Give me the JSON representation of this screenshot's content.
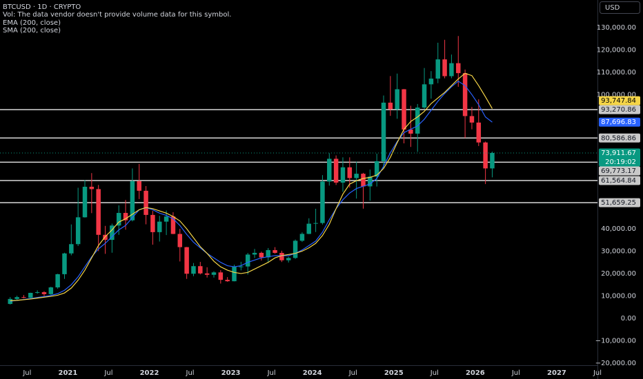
{
  "header": {
    "symbol": "BTCUSD · 1D · CRYPTO",
    "volume_note": "Vol: The data vendor doesn't provide volume data for this symbol."
  },
  "currency_button": "USD",
  "chart_data": {
    "type": "candlestick",
    "x": [
      "2020-04",
      "2020-05",
      "2020-06",
      "2020-07",
      "2020-08",
      "2020-09",
      "2020-10",
      "2020-11",
      "2020-12",
      "2021-01",
      "2021-02",
      "2021-03",
      "2021-04",
      "2021-05",
      "2021-06",
      "2021-07",
      "2021-08",
      "2021-09",
      "2021-10",
      "2021-11",
      "2021-12",
      "2022-01",
      "2022-02",
      "2022-03",
      "2022-04",
      "2022-05",
      "2022-06",
      "2022-07",
      "2022-08",
      "2022-09",
      "2022-10",
      "2022-11",
      "2022-12",
      "2023-01",
      "2023-02",
      "2023-03",
      "2023-04",
      "2023-05",
      "2023-06",
      "2023-07",
      "2023-08",
      "2023-09",
      "2023-10",
      "2023-11",
      "2023-12",
      "2024-01",
      "2024-02",
      "2024-03",
      "2024-04",
      "2024-05",
      "2024-06",
      "2024-07",
      "2024-08",
      "2024-09",
      "2024-10",
      "2024-11",
      "2024-12",
      "2025-01",
      "2025-02",
      "2025-03",
      "2025-04",
      "2025-05",
      "2025-06",
      "2025-07",
      "2025-08",
      "2025-09",
      "2025-10",
      "2025-11",
      "2025-12",
      "2026-01",
      "2026-02",
      "2026-03"
    ],
    "open": [
      6400,
      8630,
      9450,
      9140,
      11350,
      11650,
      10780,
      13800,
      19700,
      28990,
      33140,
      45140,
      58800,
      57750,
      37300,
      35040,
      41460,
      47100,
      43800,
      61300,
      57000,
      46200,
      38500,
      43200,
      45500,
      37700,
      31800,
      19900,
      23300,
      20050,
      19430,
      20500,
      17170,
      16550,
      23140,
      23150,
      28480,
      29250,
      27220,
      30480,
      29230,
      25930,
      26960,
      34650,
      37720,
      42280,
      42580,
      61130,
      71300,
      60640,
      67490,
      62680,
      64620,
      58970,
      63330,
      70220,
      96400,
      93430,
      102400,
      84370,
      82550,
      94200,
      104600,
      107150,
      115750,
      108250,
      114050,
      109600,
      90400,
      87500,
      78600,
      67000
    ],
    "high": [
      9450,
      10070,
      10380,
      11430,
      12470,
      12090,
      14100,
      19900,
      29300,
      41950,
      58350,
      61800,
      64900,
      59600,
      41300,
      42300,
      50500,
      52900,
      67000,
      69000,
      59100,
      48000,
      45800,
      48200,
      47400,
      40000,
      31900,
      24700,
      25200,
      22800,
      21000,
      21500,
      18400,
      23950,
      25250,
      29200,
      31000,
      29800,
      31400,
      31800,
      30200,
      27480,
      35200,
      38400,
      44700,
      48950,
      64000,
      73800,
      72800,
      71950,
      71950,
      70000,
      65000,
      66500,
      73600,
      99600,
      108300,
      109400,
      102500,
      95000,
      95800,
      111900,
      110500,
      123200,
      124500,
      117900,
      126200,
      111200,
      94500,
      97900,
      79000,
      74500
    ],
    "low": [
      6150,
      8110,
      8900,
      8970,
      10960,
      9880,
      10380,
      13200,
      17600,
      28130,
      32300,
      45000,
      47000,
      30000,
      28800,
      29300,
      37300,
      39600,
      43300,
      53300,
      42000,
      32900,
      34300,
      37200,
      37600,
      25400,
      17600,
      18800,
      19600,
      18200,
      18200,
      15500,
      16300,
      16500,
      21400,
      19550,
      26950,
      25800,
      24800,
      28860,
      25150,
      24900,
      26550,
      34100,
      37600,
      38550,
      41900,
      59300,
      59600,
      56550,
      58400,
      53500,
      49000,
      52550,
      58900,
      66800,
      90500,
      89200,
      78200,
      76600,
      74400,
      93400,
      98200,
      105100,
      107300,
      107300,
      103500,
      80600,
      84500,
      77000,
      60000,
      63000
    ],
    "close": [
      8630,
      9450,
      9140,
      11350,
      11650,
      10780,
      13800,
      19700,
      28990,
      33140,
      45140,
      58800,
      57750,
      37300,
      35040,
      41460,
      47100,
      43800,
      61300,
      57000,
      46200,
      38500,
      43200,
      45500,
      37700,
      31800,
      19900,
      23300,
      20050,
      19430,
      20500,
      17170,
      16550,
      23140,
      23150,
      28480,
      29250,
      27220,
      30480,
      29230,
      25930,
      26960,
      34650,
      37720,
      42280,
      42580,
      61130,
      71300,
      60640,
      67490,
      62680,
      64620,
      58970,
      63330,
      70220,
      96400,
      93430,
      102400,
      84370,
      82550,
      94200,
      104600,
      107150,
      115750,
      108250,
      114050,
      109600,
      90400,
      87500,
      78600,
      67000,
      73911.67
    ],
    "up_color": "#089981",
    "down_color": "#f23645",
    "series": [
      {
        "name": "EMA (200, close)",
        "color": "#2962ff",
        "label_text_color": "#ffffff",
        "last_label": "87,696.83",
        "values": [
          7600,
          8000,
          8400,
          8800,
          9300,
          9700,
          10200,
          11000,
          12500,
          15000,
          18500,
          23000,
          27500,
          31000,
          33500,
          36500,
          39500,
          41500,
          45000,
          48500,
          49500,
          48500,
          47000,
          46000,
          44500,
          41500,
          37500,
          34000,
          31500,
          29000,
          27000,
          25000,
          23500,
          23000,
          23500,
          25000,
          26000,
          27000,
          27500,
          28000,
          28000,
          28000,
          29000,
          30500,
          32500,
          34500,
          38500,
          44000,
          49000,
          53000,
          56000,
          58000,
          59000,
          60000,
          62500,
          68000,
          74000,
          79000,
          83000,
          84500,
          86000,
          89000,
          93000,
          97000,
          100500,
          103500,
          106000,
          104000,
          100000,
          95500,
          90000,
          87696.83
        ]
      },
      {
        "name": "SMA (200, close)",
        "color": "#f5d547",
        "label_text_color": "#000000",
        "last_label": "93,747.84",
        "values": [
          7800,
          8000,
          8300,
          8600,
          9000,
          9400,
          9800,
          10300,
          11300,
          13500,
          17000,
          21500,
          27000,
          32500,
          36500,
          39500,
          43000,
          44500,
          46500,
          48500,
          49500,
          49000,
          48000,
          47000,
          45500,
          43500,
          40000,
          36000,
          32000,
          29000,
          25500,
          23000,
          21500,
          20500,
          20000,
          20500,
          22000,
          23500,
          25000,
          27000,
          28000,
          28500,
          29000,
          30000,
          31500,
          33500,
          37000,
          42000,
          49000,
          55500,
          60000,
          61500,
          62500,
          63000,
          64000,
          67000,
          72000,
          78500,
          84500,
          88000,
          90000,
          92500,
          96000,
          98500,
          101000,
          104000,
          107000,
          109500,
          108500,
          104000,
          99000,
          93747.84
        ]
      }
    ],
    "last_price": {
      "value": 73911.67,
      "label": "73,911.67",
      "countdown": "20:19:02",
      "color": "#089981"
    },
    "horizontal_lines": [
      {
        "value": 93270.86,
        "label": "93,270.86"
      },
      {
        "value": 80586.86,
        "label": "80,586.86"
      },
      {
        "value": 69773.17,
        "label": "69,773.17"
      },
      {
        "value": 61564.84,
        "label": "61,564.84"
      },
      {
        "value": 51659.25,
        "label": "51,659.25"
      }
    ],
    "xlim": [
      "2020-03",
      "2027-07"
    ],
    "xticks": [
      {
        "value": "2020-07",
        "label": "Jul"
      },
      {
        "value": "2021-01",
        "label": "2021"
      },
      {
        "value": "2021-07",
        "label": "Jul"
      },
      {
        "value": "2022-01",
        "label": "2022"
      },
      {
        "value": "2022-07",
        "label": "Jul"
      },
      {
        "value": "2023-01",
        "label": "2023"
      },
      {
        "value": "2023-07",
        "label": "Jul"
      },
      {
        "value": "2024-01",
        "label": "2024"
      },
      {
        "value": "2024-07",
        "label": "Jul"
      },
      {
        "value": "2025-01",
        "label": "2025"
      },
      {
        "value": "2025-07",
        "label": "Jul"
      },
      {
        "value": "2026-01",
        "label": "2026"
      },
      {
        "value": "2026-07",
        "label": "Jul"
      },
      {
        "value": "2027-01",
        "label": "2027"
      },
      {
        "value": "2027-07",
        "label": "Jul"
      }
    ],
    "ylim": [
      -21000,
      142300
    ],
    "yticks": [
      {
        "value": 130000,
        "label": "130,000.00"
      },
      {
        "value": 120000,
        "label": "120,000.00"
      },
      {
        "value": 110000,
        "label": "110,000.00"
      },
      {
        "value": 100000,
        "label": "100,000.00"
      },
      {
        "value": 40000,
        "label": "40,000.00"
      },
      {
        "value": 30000,
        "label": "30,000.00"
      },
      {
        "value": 20000,
        "label": "20,000.00"
      },
      {
        "value": 10000,
        "label": "10,000.00"
      },
      {
        "value": 0,
        "label": "0.00"
      },
      {
        "value": -10000,
        "label": "−10,000.00"
      },
      {
        "value": -20000,
        "label": "−20,000.00"
      }
    ],
    "grid": false
  }
}
